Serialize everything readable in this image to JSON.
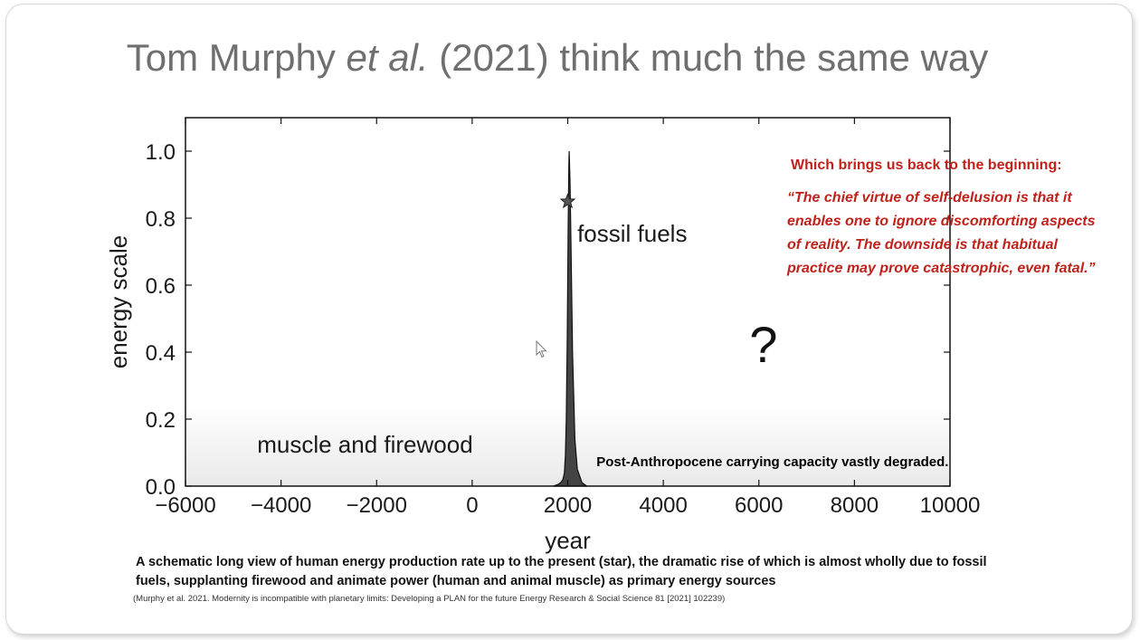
{
  "slide": {
    "title_pre": "Tom Murphy ",
    "title_italic": "et al.",
    "title_post": " (2021) think much the same way"
  },
  "quote": {
    "heading": "Which brings us back to the beginning:",
    "body": "“The chief virtue of self-delusion is that it enables one to ignore discomforting aspects of  reality.  The  downside is that habitual practice may prove catastrophic, even fatal.”"
  },
  "caption": {
    "main": "A schematic long view of human energy production rate up to the present (star), the dramatic rise of which is almost wholly due to fossil fuels, supplanting firewood and animate power (human and animal muscle) as primary energy sources",
    "citation": "(Murphy et al. 2021. Modernity is incompatible with planetary limits: Developing a PLAN for the future Energy Research & Social Science 81 [2021] 102239)"
  },
  "colors": {
    "peak_fill": "#444444",
    "quote_text": "#c0211a",
    "title_text": "#6f6f6f"
  },
  "chart_data": {
    "type": "area",
    "xlabel": "year",
    "ylabel": "energy scale",
    "xlim": [
      -6000,
      10000
    ],
    "ylim": [
      0,
      1.1
    ],
    "xticks": [
      -6000,
      -4000,
      -2000,
      0,
      2000,
      4000,
      6000,
      8000,
      10000
    ],
    "xtick_labels": [
      "−6000",
      "−4000",
      "−2000",
      "0",
      "2000",
      "4000",
      "6000",
      "8000",
      "10000"
    ],
    "yticks": [
      0.0,
      0.2,
      0.4,
      0.6,
      0.8,
      1.0
    ],
    "ytick_labels": [
      "0.0",
      "0.2",
      "0.4",
      "0.6",
      "0.8",
      "1.0"
    ],
    "grid": false,
    "series": [
      {
        "x": [
          1700,
          1800,
          1850,
          1900,
          1930,
          1950,
          1970,
          1990,
          2010,
          2020,
          2025,
          2030,
          2050,
          2070,
          2100,
          2150,
          2200,
          2300,
          2400
        ],
        "y": [
          0.0,
          0.005,
          0.01,
          0.02,
          0.04,
          0.09,
          0.2,
          0.45,
          0.78,
          0.92,
          0.97,
          1.0,
          0.9,
          0.7,
          0.4,
          0.14,
          0.05,
          0.01,
          0.0
        ]
      }
    ],
    "present_marker": {
      "x": 2000,
      "y": 0.85
    },
    "annotations": [
      {
        "text": "fossil fuels",
        "x": 2200,
        "y": 0.73
      },
      {
        "text": "muscle and firewood",
        "x": -4500,
        "y": 0.1
      },
      {
        "text": "?",
        "x": 5800,
        "y": 0.37
      },
      {
        "text": "Post-Anthropocene carrying capacity vastly degraded.",
        "x": 2600,
        "y": 0.06
      }
    ]
  }
}
